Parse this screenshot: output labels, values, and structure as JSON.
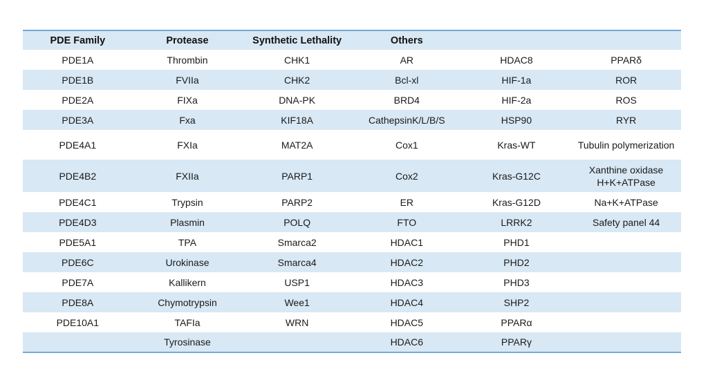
{
  "table": {
    "headers": [
      "PDE Family",
      "Protease",
      "Synthetic Lethality",
      "Others",
      "",
      ""
    ],
    "rows": [
      [
        "PDE1A",
        "Thrombin",
        "CHK1",
        "AR",
        "HDAC8",
        "PPARδ"
      ],
      [
        "PDE1B",
        "FVIIa",
        "CHK2",
        "Bcl-xl",
        "HIF-1a",
        "ROR"
      ],
      [
        "PDE2A",
        "FIXa",
        "DNA-PK",
        "BRD4",
        "HIF-2a",
        "ROS"
      ],
      [
        "PDE3A",
        "Fxa",
        "KIF18A",
        "CathepsinK/L/B/S",
        "HSP90",
        "RYR"
      ],
      [
        "PDE4A1",
        "FXIa",
        "MAT2A",
        "Cox1",
        "Kras-WT",
        "Tubulin polymerization"
      ],
      [
        "PDE4B2",
        "FXIIa",
        "PARP1",
        "Cox2",
        "Kras-G12C",
        "Xanthine oxidase\nH+K+ATPase"
      ],
      [
        "PDE4C1",
        "Trypsin",
        "PARP2",
        "ER",
        "Kras-G12D",
        "Na+K+ATPase"
      ],
      [
        "PDE4D3",
        "Plasmin",
        "POLQ",
        "FTO",
        "LRRK2",
        "Safety panel 44"
      ],
      [
        "PDE5A1",
        "TPA",
        "Smarca2",
        "HDAC1",
        "PHD1",
        ""
      ],
      [
        "PDE6C",
        "Urokinase",
        "Smarca4",
        "HDAC2",
        "PHD2",
        ""
      ],
      [
        "PDE7A",
        "Kallikern",
        "USP1",
        "HDAC3",
        "PHD3",
        ""
      ],
      [
        "PDE8A",
        "Chymotrypsin",
        "Wee1",
        "HDAC4",
        "SHP2",
        ""
      ],
      [
        "PDE10A1",
        "TAFIa",
        "WRN",
        "HDAC5",
        "PPARα",
        ""
      ],
      [
        "",
        "Tyrosinase",
        "",
        "HDAC6",
        "PPARγ",
        ""
      ]
    ],
    "colors": {
      "band_fill": "#d8e8f4",
      "border_rule": "#74a9d6",
      "text": "#1a1a1a"
    }
  }
}
